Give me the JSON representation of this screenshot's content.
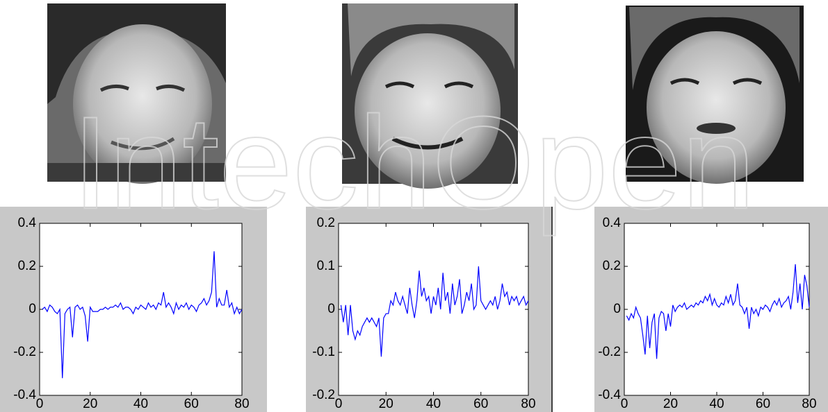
{
  "watermark": "IntechOpen",
  "chart_data": [
    {
      "type": "line",
      "x": [
        1,
        2,
        3,
        4,
        5,
        6,
        7,
        8,
        9,
        10,
        11,
        12,
        13,
        14,
        15,
        16,
        17,
        18,
        19,
        20,
        21,
        22,
        23,
        24,
        25,
        26,
        27,
        28,
        29,
        30,
        31,
        32,
        33,
        34,
        35,
        36,
        37,
        38,
        39,
        40,
        41,
        42,
        43,
        44,
        45,
        46,
        47,
        48,
        49,
        50,
        51,
        52,
        53,
        54,
        55,
        56,
        57,
        58,
        59,
        60,
        61,
        62,
        63,
        64,
        65,
        66,
        67,
        68,
        69,
        70,
        71,
        72,
        73,
        74,
        75,
        76,
        77,
        78,
        79,
        80
      ],
      "series": [
        {
          "color": "#0000ff",
          "values": [
            0,
            0.01,
            -0.01,
            0.02,
            0.01,
            -0.01,
            -0.02,
            0,
            -0.32,
            -0.02,
            0,
            0.01,
            -0.13,
            0.01,
            0.02,
            0,
            0.01,
            -0.03,
            -0.15,
            0.01,
            -0.01,
            -0.01,
            -0.01,
            0,
            0,
            0.01,
            0,
            0.01,
            0.01,
            0.02,
            0.01,
            0.03,
            0,
            0.01,
            0.01,
            0,
            -0.02,
            0.01,
            0,
            0.02,
            0.01,
            0,
            0.03,
            0.01,
            0.02,
            0,
            0.03,
            0.02,
            0.08,
            0.01,
            0.03,
            0.01,
            -0.02,
            0.03,
            0,
            0.02,
            0.01,
            0.03,
            0,
            0.02,
            0.01,
            -0.01,
            0.02,
            0.03,
            0.05,
            0.02,
            0.04,
            0.08,
            0.27,
            0.01,
            0.05,
            0.02,
            0.02,
            0.09,
            0.01,
            0.03,
            -0.02,
            0.01,
            -0.02,
            0
          ]
        }
      ],
      "xlim": [
        0,
        80
      ],
      "xticks": [
        0,
        20,
        40,
        60,
        80
      ],
      "ylim": [
        -0.4,
        0.4
      ],
      "yticks": [
        -0.4,
        -0.2,
        0,
        0.2,
        0.4
      ]
    },
    {
      "type": "line",
      "x": [
        1,
        2,
        3,
        4,
        5,
        6,
        7,
        8,
        9,
        10,
        11,
        12,
        13,
        14,
        15,
        16,
        17,
        18,
        19,
        20,
        21,
        22,
        23,
        24,
        25,
        26,
        27,
        28,
        29,
        30,
        31,
        32,
        33,
        34,
        35,
        36,
        37,
        38,
        39,
        40,
        41,
        42,
        43,
        44,
        45,
        46,
        47,
        48,
        49,
        50,
        51,
        52,
        53,
        54,
        55,
        56,
        57,
        58,
        59,
        60,
        61,
        62,
        63,
        64,
        65,
        66,
        67,
        68,
        69,
        70,
        71,
        72,
        73,
        74,
        75,
        76,
        77,
        78,
        79,
        80
      ],
      "series": [
        {
          "color": "#0000ff",
          "values": [
            0.01,
            -0.03,
            0.01,
            -0.06,
            0.01,
            -0.05,
            -0.07,
            -0.05,
            -0.06,
            -0.04,
            -0.03,
            -0.02,
            -0.03,
            -0.02,
            -0.03,
            -0.04,
            -0.02,
            -0.11,
            -0.02,
            -0.01,
            -0.01,
            0.02,
            0.01,
            0.04,
            0.02,
            0.01,
            0.03,
            0.01,
            -0.01,
            0.05,
            0.01,
            -0.02,
            0.02,
            0.09,
            0.03,
            0.05,
            0.02,
            0.03,
            -0.01,
            0.03,
            0.01,
            0.05,
            0,
            0.085,
            0.02,
            0.04,
            -0.01,
            0.06,
            0.01,
            0.03,
            0.07,
            -0.01,
            0.01,
            0.04,
            0.02,
            0.06,
            0,
            0.01,
            0.1,
            0.02,
            0.01,
            0,
            0.01,
            0.02,
            0.01,
            0.03,
            0,
            0.02,
            0.06,
            0.03,
            0.04,
            0.01,
            0.03,
            0.02,
            0.03,
            0.01,
            0.02,
            0.03,
            0.01,
            0.02
          ]
        }
      ],
      "xlim": [
        0,
        80
      ],
      "xticks": [
        0,
        20,
        40,
        60,
        80
      ],
      "ylim": [
        -0.2,
        0.2
      ],
      "yticks": [
        -0.2,
        -0.1,
        0,
        0.1,
        0.2
      ]
    },
    {
      "type": "line",
      "x": [
        1,
        2,
        3,
        4,
        5,
        6,
        7,
        8,
        9,
        10,
        11,
        12,
        13,
        14,
        15,
        16,
        17,
        18,
        19,
        20,
        21,
        22,
        23,
        24,
        25,
        26,
        27,
        28,
        29,
        30,
        31,
        32,
        33,
        34,
        35,
        36,
        37,
        38,
        39,
        40,
        41,
        42,
        43,
        44,
        45,
        46,
        47,
        48,
        49,
        50,
        51,
        52,
        53,
        54,
        55,
        56,
        57,
        58,
        59,
        60,
        61,
        62,
        63,
        64,
        65,
        66,
        67,
        68,
        69,
        70,
        71,
        72,
        73,
        74,
        75,
        76,
        77,
        78,
        79,
        80
      ],
      "series": [
        {
          "color": "#0000ff",
          "values": [
            -0.03,
            -0.05,
            -0.02,
            -0.04,
            0.01,
            -0.02,
            -0.04,
            -0.12,
            -0.21,
            -0.03,
            -0.18,
            -0.06,
            -0.02,
            -0.23,
            -0.04,
            -0.01,
            -0.02,
            -0.1,
            -0.02,
            -0.08,
            0.02,
            -0.01,
            0.01,
            0.02,
            0.01,
            0.03,
            0,
            0.01,
            0.02,
            0.01,
            0.03,
            0.02,
            0.04,
            0.03,
            0.06,
            0.04,
            0.07,
            0.02,
            0.05,
            0.02,
            0.01,
            0.03,
            0.02,
            0.06,
            0.03,
            0.07,
            0.02,
            0.04,
            0.12,
            0.02,
            0.01,
            -0.02,
            0.01,
            -0.09,
            0.01,
            -0.02,
            0,
            -0.03,
            0.01,
            0,
            0.02,
            0.01,
            -0.01,
            0.02,
            0.04,
            0.02,
            0.05,
            0.01,
            0.03,
            0.04,
            0.06,
            0,
            0.08,
            0.21,
            0.03,
            0.12,
            0,
            0.16,
            0.11,
            0.01
          ]
        }
      ],
      "xlim": [
        0,
        80
      ],
      "xticks": [
        0,
        20,
        40,
        60,
        80
      ],
      "ylim": [
        -0.4,
        0.4
      ],
      "yticks": [
        -0.4,
        -0.2,
        0,
        0.2,
        0.4
      ]
    }
  ]
}
